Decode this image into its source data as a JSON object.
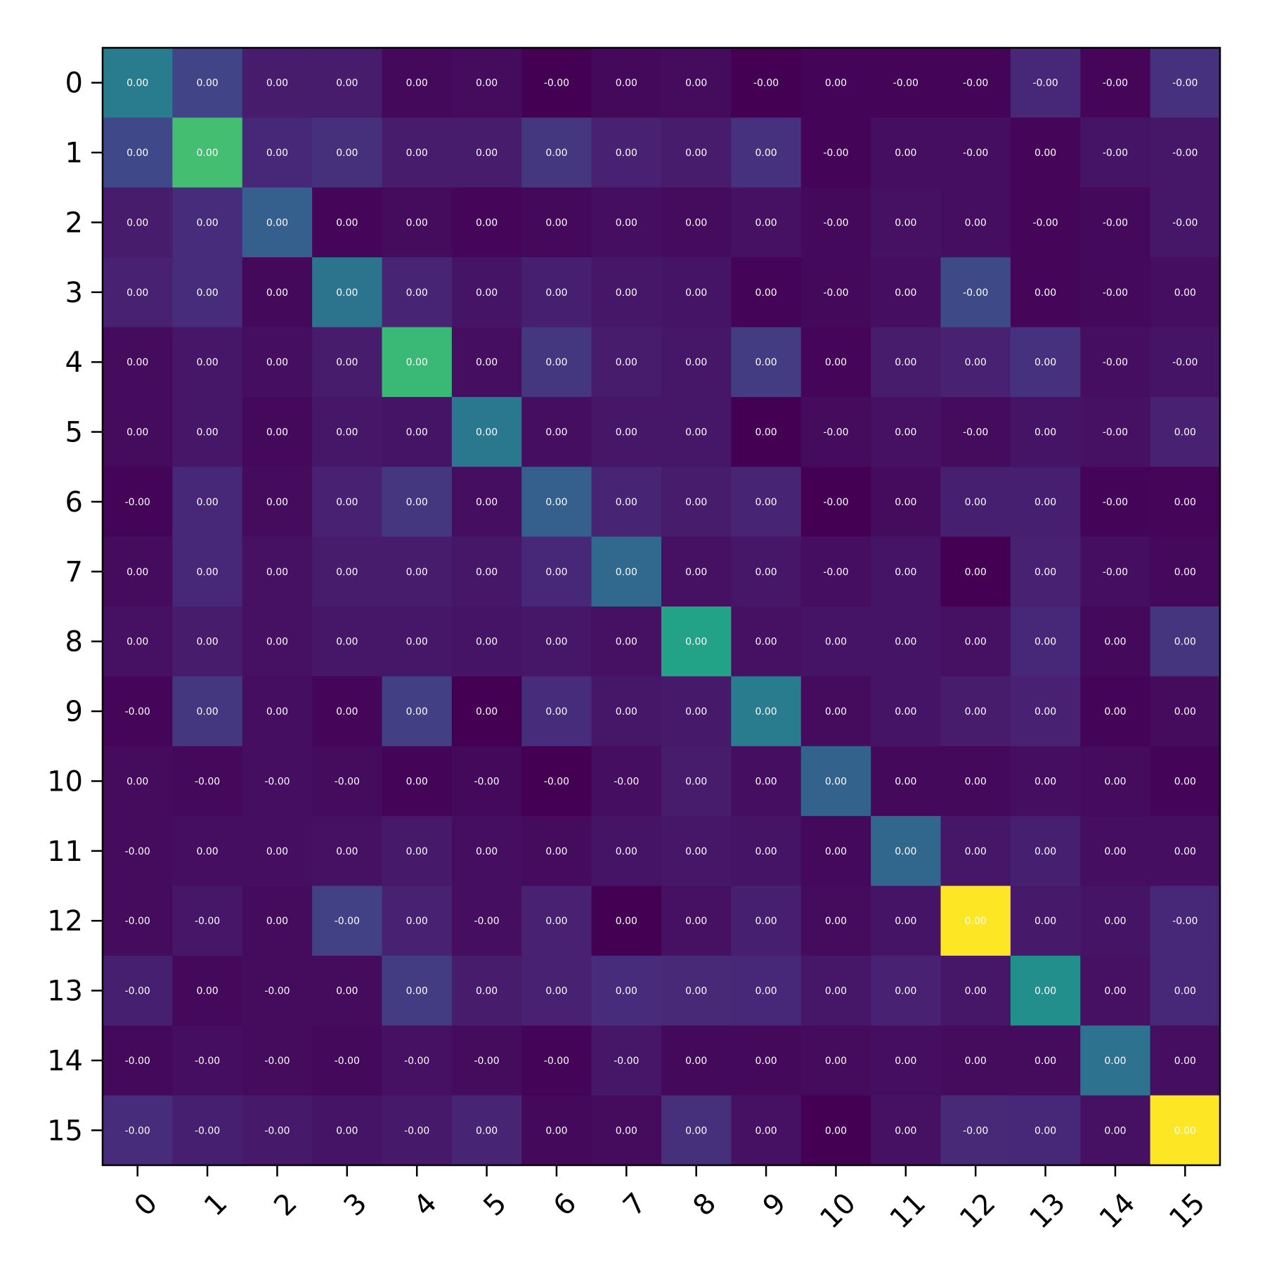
{
  "chart_data": {
    "type": "heatmap",
    "title": "",
    "xlabel": "",
    "ylabel": "",
    "colormap": "viridis",
    "x_ticks": [
      "0",
      "1",
      "2",
      "3",
      "4",
      "5",
      "6",
      "7",
      "8",
      "9",
      "10",
      "11",
      "12",
      "13",
      "14",
      "15"
    ],
    "y_ticks": [
      "0",
      "1",
      "2",
      "3",
      "4",
      "5",
      "6",
      "7",
      "8",
      "9",
      "10",
      "11",
      "12",
      "13",
      "14",
      "15"
    ],
    "cell_labels": [
      [
        "0.00",
        "0.00",
        "0.00",
        "0.00",
        "0.00",
        "0.00",
        "-0.00",
        "0.00",
        "0.00",
        "-0.00",
        "0.00",
        "-0.00",
        "-0.00",
        "-0.00",
        "-0.00",
        "-0.00"
      ],
      [
        "0.00",
        "0.00",
        "0.00",
        "0.00",
        "0.00",
        "0.00",
        "0.00",
        "0.00",
        "0.00",
        "0.00",
        "-0.00",
        "0.00",
        "-0.00",
        "0.00",
        "-0.00",
        "-0.00"
      ],
      [
        "0.00",
        "0.00",
        "0.00",
        "0.00",
        "0.00",
        "0.00",
        "0.00",
        "0.00",
        "0.00",
        "0.00",
        "-0.00",
        "0.00",
        "0.00",
        "-0.00",
        "-0.00",
        "-0.00"
      ],
      [
        "0.00",
        "0.00",
        "0.00",
        "0.00",
        "0.00",
        "0.00",
        "0.00",
        "0.00",
        "0.00",
        "0.00",
        "-0.00",
        "0.00",
        "-0.00",
        "0.00",
        "-0.00",
        "0.00"
      ],
      [
        "0.00",
        "0.00",
        "0.00",
        "0.00",
        "0.00",
        "0.00",
        "0.00",
        "0.00",
        "0.00",
        "0.00",
        "0.00",
        "0.00",
        "0.00",
        "0.00",
        "-0.00",
        "-0.00"
      ],
      [
        "0.00",
        "0.00",
        "0.00",
        "0.00",
        "0.00",
        "0.00",
        "0.00",
        "0.00",
        "0.00",
        "0.00",
        "-0.00",
        "0.00",
        "-0.00",
        "0.00",
        "-0.00",
        "0.00"
      ],
      [
        "-0.00",
        "0.00",
        "0.00",
        "0.00",
        "0.00",
        "0.00",
        "0.00",
        "0.00",
        "0.00",
        "0.00",
        "-0.00",
        "0.00",
        "0.00",
        "0.00",
        "-0.00",
        "0.00"
      ],
      [
        "0.00",
        "0.00",
        "0.00",
        "0.00",
        "0.00",
        "0.00",
        "0.00",
        "0.00",
        "0.00",
        "0.00",
        "-0.00",
        "0.00",
        "0.00",
        "0.00",
        "-0.00",
        "0.00"
      ],
      [
        "0.00",
        "0.00",
        "0.00",
        "0.00",
        "0.00",
        "0.00",
        "0.00",
        "0.00",
        "0.00",
        "0.00",
        "0.00",
        "0.00",
        "0.00",
        "0.00",
        "0.00",
        "0.00"
      ],
      [
        "-0.00",
        "0.00",
        "0.00",
        "0.00",
        "0.00",
        "0.00",
        "0.00",
        "0.00",
        "0.00",
        "0.00",
        "0.00",
        "0.00",
        "0.00",
        "0.00",
        "0.00",
        "0.00"
      ],
      [
        "0.00",
        "-0.00",
        "-0.00",
        "-0.00",
        "0.00",
        "-0.00",
        "-0.00",
        "-0.00",
        "0.00",
        "0.00",
        "0.00",
        "0.00",
        "0.00",
        "0.00",
        "0.00",
        "0.00"
      ],
      [
        "-0.00",
        "0.00",
        "0.00",
        "0.00",
        "0.00",
        "0.00",
        "0.00",
        "0.00",
        "0.00",
        "0.00",
        "0.00",
        "0.00",
        "0.00",
        "0.00",
        "0.00",
        "0.00"
      ],
      [
        "-0.00",
        "-0.00",
        "0.00",
        "-0.00",
        "0.00",
        "-0.00",
        "0.00",
        "0.00",
        "0.00",
        "0.00",
        "0.00",
        "0.00",
        "0.00",
        "0.00",
        "0.00",
        "-0.00"
      ],
      [
        "-0.00",
        "0.00",
        "-0.00",
        "0.00",
        "0.00",
        "0.00",
        "0.00",
        "0.00",
        "0.00",
        "0.00",
        "0.00",
        "0.00",
        "0.00",
        "0.00",
        "0.00",
        "0.00"
      ],
      [
        "-0.00",
        "-0.00",
        "-0.00",
        "-0.00",
        "-0.00",
        "-0.00",
        "-0.00",
        "-0.00",
        "0.00",
        "0.00",
        "0.00",
        "0.00",
        "0.00",
        "0.00",
        "0.00",
        "0.00"
      ],
      [
        "-0.00",
        "-0.00",
        "-0.00",
        "0.00",
        "-0.00",
        "0.00",
        "0.00",
        "0.00",
        "0.00",
        "0.00",
        "0.00",
        "0.00",
        "-0.00",
        "0.00",
        "0.00",
        "0.00"
      ]
    ],
    "relative_intensity": [
      [
        0.52,
        0.25,
        0.1,
        0.1,
        0.03,
        0.04,
        0.0,
        0.03,
        0.04,
        0.0,
        0.01,
        0.01,
        0.01,
        0.14,
        0.02,
        0.18
      ],
      [
        0.27,
        0.82,
        0.14,
        0.17,
        0.1,
        0.1,
        0.2,
        0.12,
        0.1,
        0.18,
        0.01,
        0.05,
        0.05,
        0.02,
        0.07,
        0.08
      ],
      [
        0.1,
        0.16,
        0.38,
        0.02,
        0.04,
        0.02,
        0.03,
        0.05,
        0.04,
        0.06,
        0.03,
        0.06,
        0.05,
        0.02,
        0.03,
        0.08
      ],
      [
        0.12,
        0.16,
        0.03,
        0.48,
        0.13,
        0.07,
        0.11,
        0.08,
        0.07,
        0.01,
        0.03,
        0.05,
        0.28,
        0.02,
        0.03,
        0.05
      ],
      [
        0.04,
        0.08,
        0.05,
        0.1,
        0.8,
        0.05,
        0.2,
        0.1,
        0.08,
        0.22,
        0.02,
        0.1,
        0.12,
        0.18,
        0.05,
        0.07
      ],
      [
        0.04,
        0.08,
        0.03,
        0.08,
        0.07,
        0.5,
        0.05,
        0.08,
        0.08,
        0.0,
        0.04,
        0.06,
        0.04,
        0.07,
        0.06,
        0.12
      ],
      [
        0.01,
        0.14,
        0.04,
        0.12,
        0.2,
        0.05,
        0.38,
        0.13,
        0.1,
        0.13,
        0.0,
        0.04,
        0.11,
        0.11,
        0.01,
        0.02
      ],
      [
        0.04,
        0.14,
        0.06,
        0.1,
        0.1,
        0.08,
        0.14,
        0.43,
        0.06,
        0.08,
        0.05,
        0.07,
        0.0,
        0.12,
        0.05,
        0.03
      ],
      [
        0.06,
        0.1,
        0.06,
        0.08,
        0.08,
        0.07,
        0.08,
        0.06,
        0.72,
        0.06,
        0.07,
        0.07,
        0.06,
        0.14,
        0.03,
        0.19
      ],
      [
        0.02,
        0.2,
        0.05,
        0.02,
        0.23,
        0.0,
        0.16,
        0.08,
        0.09,
        0.52,
        0.04,
        0.07,
        0.1,
        0.12,
        0.01,
        0.04
      ],
      [
        0.04,
        0.03,
        0.05,
        0.04,
        0.01,
        0.03,
        0.0,
        0.05,
        0.1,
        0.05,
        0.4,
        0.03,
        0.03,
        0.05,
        0.04,
        0.01
      ],
      [
        0.04,
        0.05,
        0.05,
        0.06,
        0.09,
        0.05,
        0.04,
        0.07,
        0.08,
        0.07,
        0.03,
        0.42,
        0.08,
        0.11,
        0.05,
        0.05
      ],
      [
        0.04,
        0.08,
        0.04,
        0.24,
        0.12,
        0.05,
        0.12,
        0.0,
        0.06,
        0.11,
        0.04,
        0.07,
        1.0,
        0.09,
        0.07,
        0.14
      ],
      [
        0.11,
        0.03,
        0.04,
        0.04,
        0.22,
        0.1,
        0.12,
        0.16,
        0.15,
        0.14,
        0.08,
        0.12,
        0.08,
        0.62,
        0.06,
        0.14
      ],
      [
        0.03,
        0.05,
        0.04,
        0.03,
        0.06,
        0.04,
        0.01,
        0.08,
        0.03,
        0.03,
        0.04,
        0.05,
        0.04,
        0.04,
        0.47,
        0.05
      ],
      [
        0.16,
        0.11,
        0.09,
        0.07,
        0.09,
        0.13,
        0.03,
        0.04,
        0.17,
        0.06,
        0.0,
        0.06,
        0.15,
        0.14,
        0.06,
        1.0
      ]
    ]
  }
}
